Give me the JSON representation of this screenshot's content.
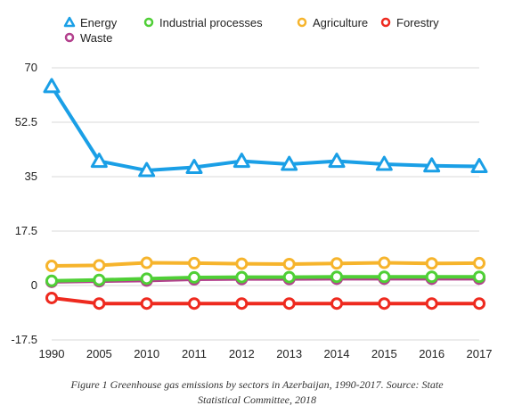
{
  "chart_data": {
    "type": "line",
    "categories": [
      "1990",
      "2005",
      "2010",
      "2011",
      "2012",
      "2013",
      "2014",
      "2015",
      "2016",
      "2017"
    ],
    "ylim": [
      -17.5,
      70
    ],
    "yticks": [
      "70",
      "52.5",
      "35",
      "17.5",
      "0",
      "-17.5"
    ],
    "ytick_values": [
      70,
      52.5,
      35,
      17.5,
      0,
      -17.5
    ],
    "grid": true,
    "legend_position": "top",
    "series": [
      {
        "name": "Energy",
        "color": "#1a9fe6",
        "marker": "triangle",
        "values": [
          64,
          40,
          37,
          38,
          40,
          39,
          40,
          39,
          38.5,
          38.3
        ]
      },
      {
        "name": "Industrial processes",
        "color": "#4fcf36",
        "marker": "circle",
        "values": [
          1.5,
          1.8,
          2.2,
          2.6,
          2.7,
          2.7,
          2.8,
          2.8,
          2.8,
          2.8
        ]
      },
      {
        "name": "Agriculture",
        "color": "#f6b42c",
        "marker": "circle",
        "values": [
          6.3,
          6.5,
          7.3,
          7.2,
          7.0,
          6.9,
          7.1,
          7.3,
          7.1,
          7.2
        ]
      },
      {
        "name": "Forestry",
        "color": "#ee2a1f",
        "marker": "circle",
        "values": [
          -4,
          -5.8,
          -5.8,
          -5.8,
          -5.8,
          -5.8,
          -5.8,
          -5.8,
          -5.8,
          -5.8
        ]
      },
      {
        "name": "Waste",
        "color": "#b3408d",
        "marker": "circle",
        "values": [
          1.2,
          1.4,
          1.6,
          2.0,
          2.1,
          2.1,
          2.2,
          2.2,
          2.2,
          2.2
        ]
      }
    ]
  },
  "caption": {
    "line1": "Figure 1 Greenhouse gas emissions by sectors in Azerbaijan, 1990-2017. Source: State",
    "line2": "Statistical Committee, 2018"
  }
}
